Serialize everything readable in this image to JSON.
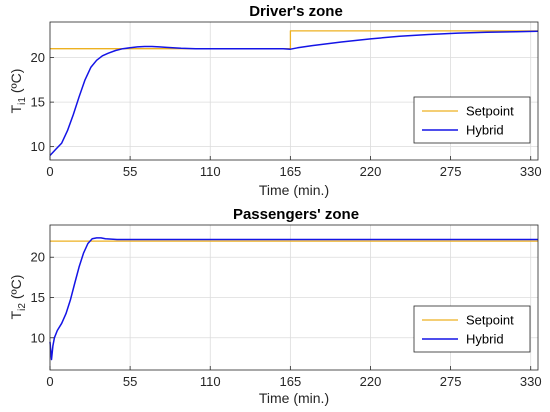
{
  "chart_data": [
    {
      "type": "line",
      "title": "Driver's zone",
      "xlabel": "Time (min.)",
      "ylabel": {
        "main": "T",
        "sub": "i1",
        "unit": " (ºC)"
      },
      "xlim": [
        0,
        335
      ],
      "ylim": [
        8.5,
        24
      ],
      "xticks": [
        0,
        55,
        110,
        165,
        220,
        275,
        330
      ],
      "yticks": [
        10,
        15,
        20
      ],
      "grid": true,
      "legend": "bottom-right",
      "series": [
        {
          "name": "Setpoint",
          "color": "#EDB120",
          "x": [
            0,
            165,
            165,
            335
          ],
          "y": [
            21,
            21,
            23,
            23
          ]
        },
        {
          "name": "Hybrid",
          "color": "#1414E6",
          "x": [
            0,
            4,
            8,
            12,
            16,
            20,
            24,
            28,
            32,
            36,
            40,
            45,
            50,
            55,
            60,
            65,
            70,
            75,
            80,
            90,
            100,
            110,
            120,
            130,
            140,
            150,
            160,
            165,
            170,
            180,
            200,
            220,
            240,
            260,
            280,
            300,
            320,
            335
          ],
          "y": [
            9.0,
            9.7,
            10.4,
            11.8,
            13.6,
            15.6,
            17.5,
            18.9,
            19.7,
            20.2,
            20.5,
            20.8,
            21.0,
            21.1,
            21.2,
            21.25,
            21.25,
            21.2,
            21.15,
            21.05,
            21.0,
            21.0,
            21.0,
            21.0,
            21.0,
            21.0,
            21.0,
            20.95,
            21.1,
            21.35,
            21.75,
            22.1,
            22.4,
            22.6,
            22.75,
            22.85,
            22.9,
            22.95
          ]
        }
      ]
    },
    {
      "type": "line",
      "title": "Passengers' zone",
      "xlabel": "Time (min.)",
      "ylabel": {
        "main": "T",
        "sub": "i2",
        "unit": " (ºC)"
      },
      "xlim": [
        0,
        335
      ],
      "ylim": [
        6,
        24
      ],
      "xticks": [
        0,
        55,
        110,
        165,
        220,
        275,
        330
      ],
      "yticks": [
        10,
        15,
        20
      ],
      "grid": true,
      "legend": "bottom-right",
      "series": [
        {
          "name": "Setpoint",
          "color": "#EDB120",
          "x": [
            0,
            335
          ],
          "y": [
            22,
            22
          ]
        },
        {
          "name": "Hybrid",
          "color": "#1414E6",
          "x": [
            0,
            1,
            2,
            3,
            5,
            8,
            11,
            14,
            17,
            20,
            23,
            26,
            29,
            32,
            35,
            38,
            42,
            46,
            50,
            55,
            60,
            80,
            110,
            165,
            220,
            275,
            335
          ],
          "y": [
            9.5,
            7.3,
            9.0,
            10.0,
            10.9,
            11.8,
            13.0,
            14.7,
            16.8,
            18.8,
            20.5,
            21.7,
            22.3,
            22.4,
            22.4,
            22.3,
            22.25,
            22.2,
            22.2,
            22.2,
            22.2,
            22.2,
            22.2,
            22.2,
            22.2,
            22.2,
            22.2
          ]
        }
      ]
    }
  ]
}
